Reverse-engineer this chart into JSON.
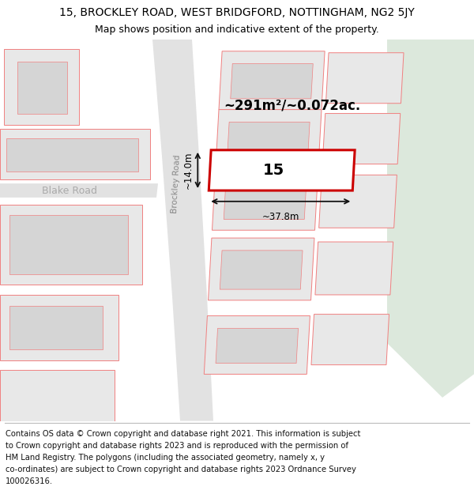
{
  "title_line1": "15, BROCKLEY ROAD, WEST BRIDGFORD, NOTTINGHAM, NG2 5JY",
  "title_line2": "Map shows position and indicative extent of the property.",
  "footer_lines": [
    "Contains OS data © Crown copyright and database right 2021. This information is subject",
    "to Crown copyright and database rights 2023 and is reproduced with the permission of",
    "HM Land Registry. The polygons (including the associated geometry, namely x, y",
    "co-ordinates) are subject to Crown copyright and database rights 2023 Ordnance Survey",
    "100026316."
  ],
  "map_bg": "#f7f7f7",
  "road_fill": "#e2e2e2",
  "plot_fill": "#e8e8e8",
  "plot_edge": "#f08080",
  "highlight_color": "#cc0000",
  "dim_line_color": "#111111",
  "green_fill": "#dce8dc",
  "area_text": "~291m²/~0.072ac.",
  "number_text": "15",
  "width_text": "~37.8m",
  "height_text": "~14.0m",
  "road_label": "Brockley Road",
  "street_label": "Blake Road",
  "title_fontsize": 10,
  "subtitle_fontsize": 9,
  "footer_fontsize": 7.2
}
